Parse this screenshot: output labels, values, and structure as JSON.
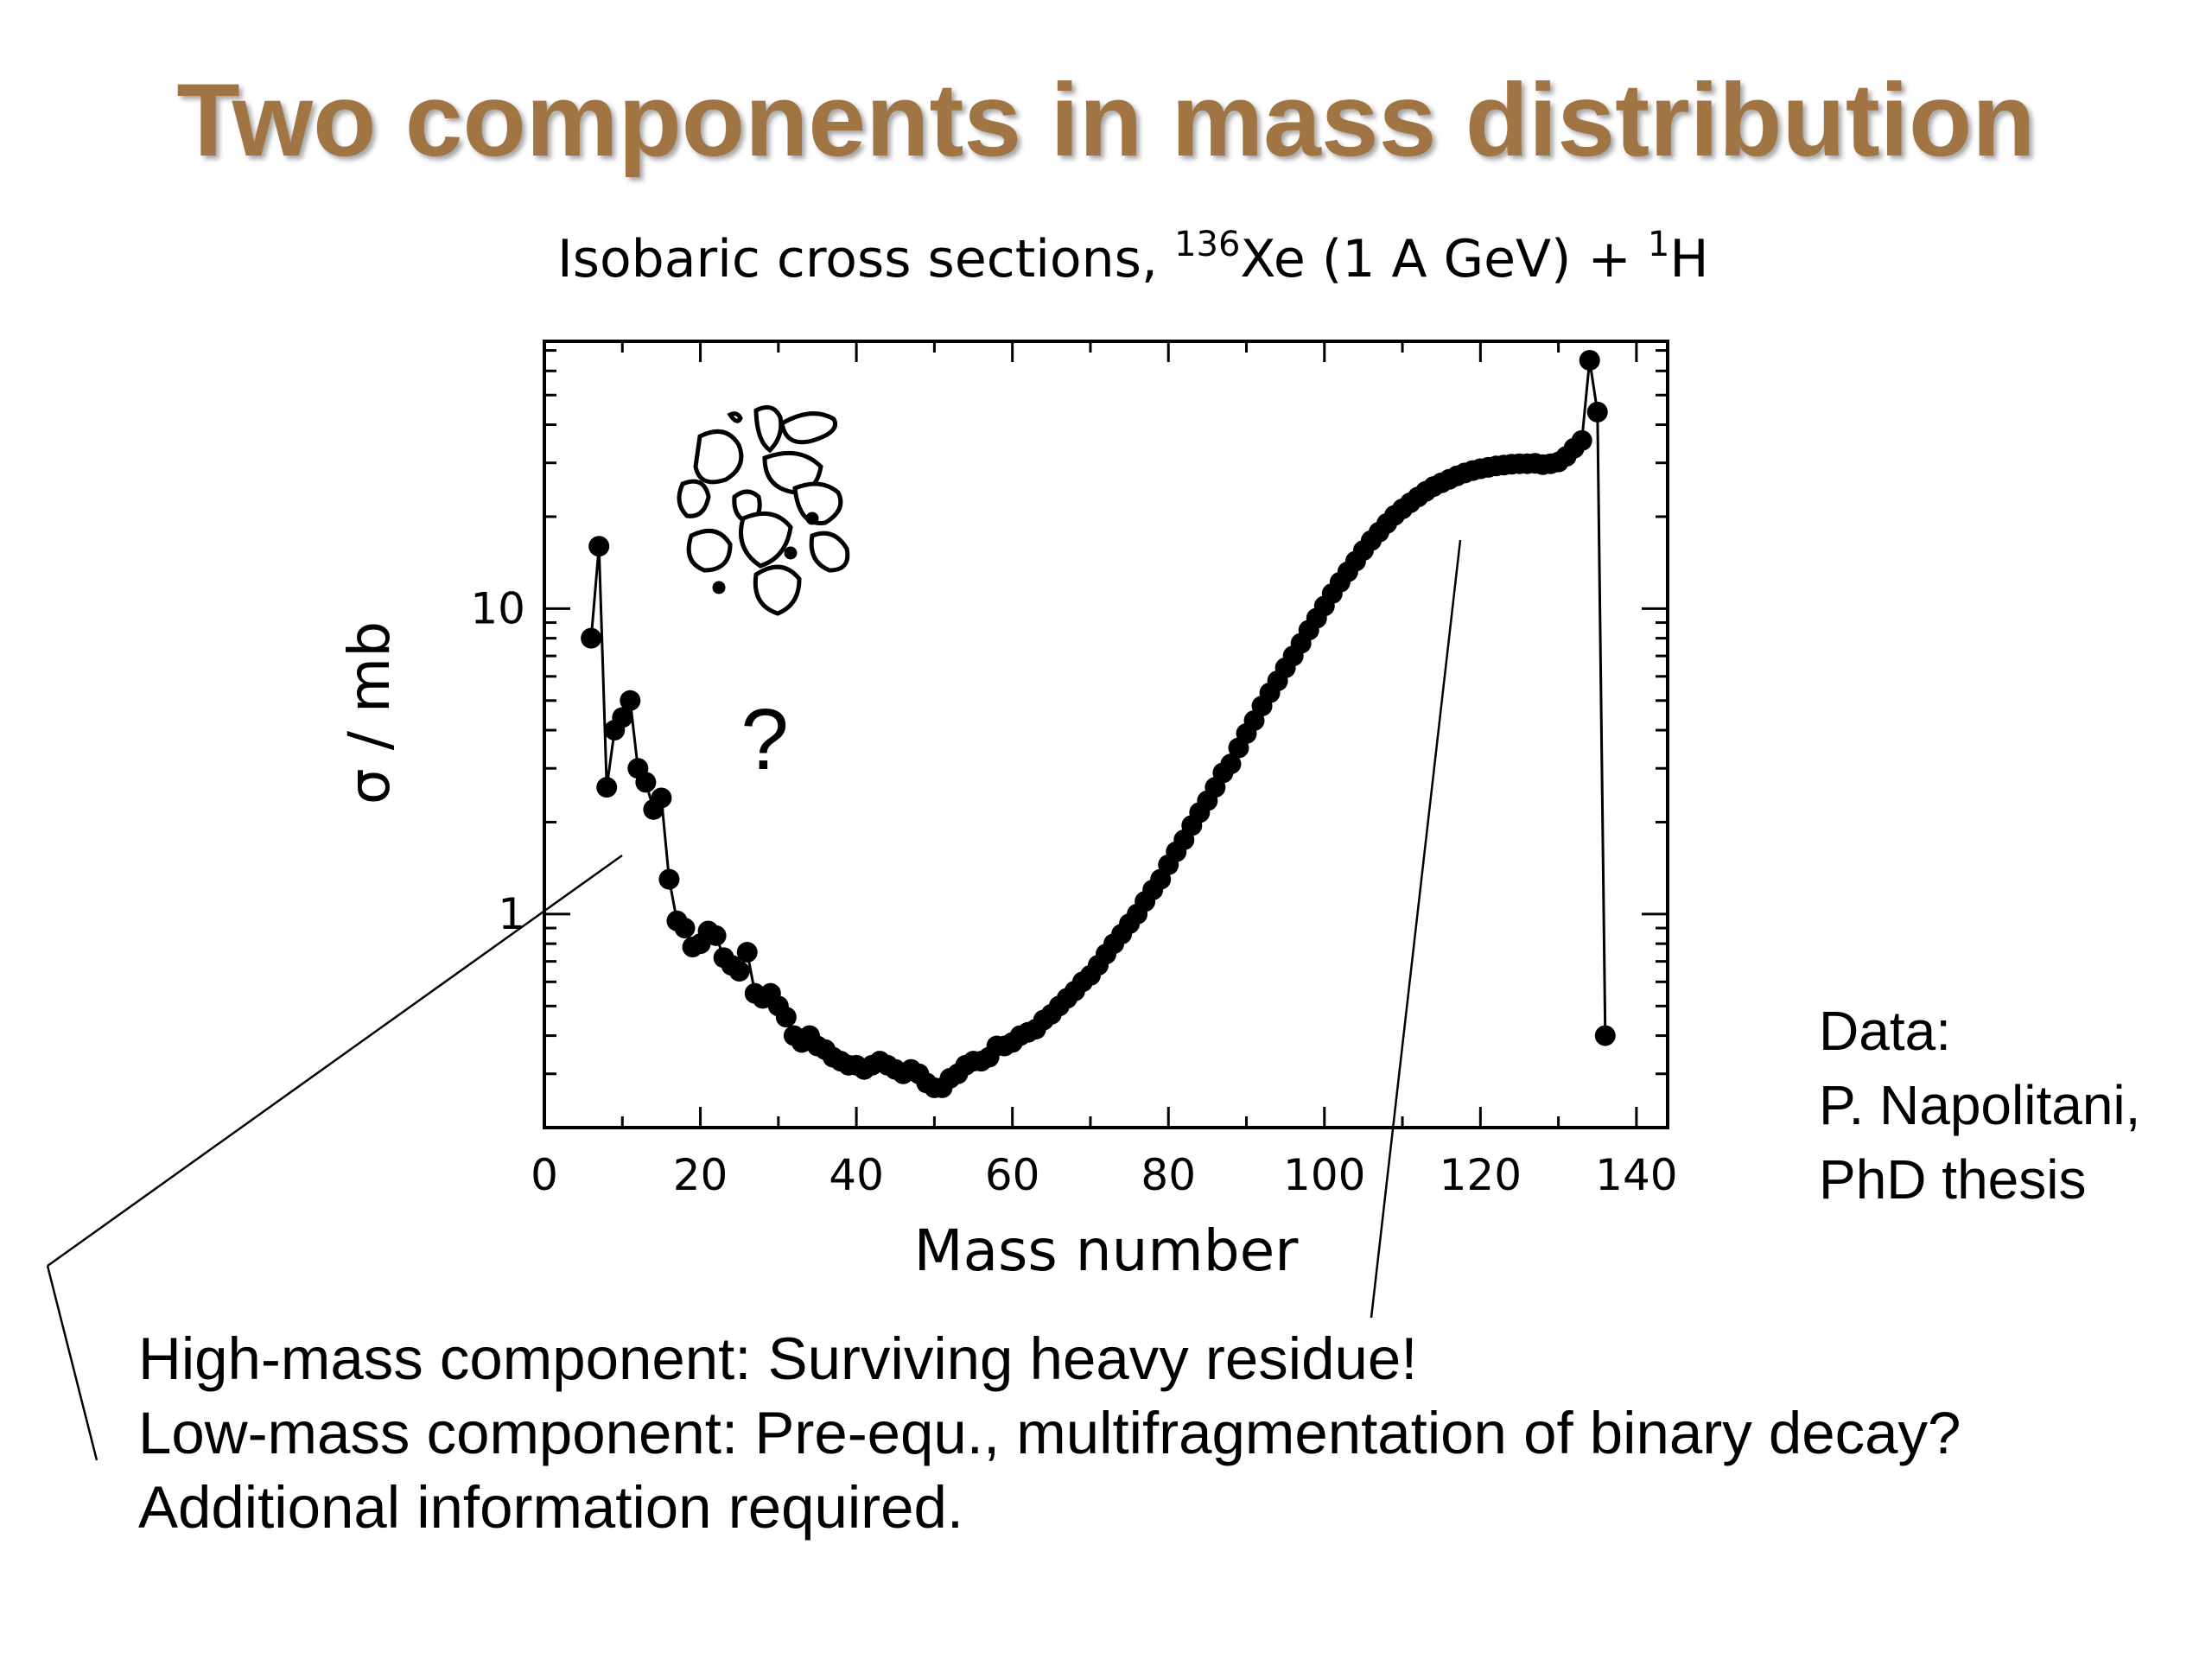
{
  "slide": {
    "title": "Two components in mass distribution",
    "data_note": [
      "Data:",
      "P. Napolitani,",
      "PhD thesis"
    ],
    "bottom_lines": [
      "High-mass component: Surviving heavy residue!",
      "Low-mass component: Pre-equ., multifragmentation of binary decay?",
      "Additional information required."
    ],
    "question_mark": "?",
    "fragments_icon": "multifragmentation-sketch-icon"
  },
  "chart_data": {
    "type": "scatter",
    "title_parts": {
      "pre": "Isobaric cross sections, ",
      "sup1": "136",
      "mid": "Xe (1 A GeV) + ",
      "sup2": "1",
      "post": "H"
    },
    "xlabel": "Mass number",
    "ylabel": "σ / mb",
    "xlim": [
      0,
      144
    ],
    "ylim": [
      0.2,
      75
    ],
    "yscale": "log",
    "x_ticks": [
      0,
      20,
      40,
      60,
      80,
      100,
      120,
      140
    ],
    "y_ticks": [
      {
        "value": 1,
        "label": "1"
      },
      {
        "value": 10,
        "label": "10"
      }
    ],
    "grid": false,
    "series": [
      {
        "points": [
          [
            6,
            8.0
          ],
          [
            7,
            16.0
          ],
          [
            8,
            2.6
          ],
          [
            9,
            4.0
          ],
          [
            10,
            4.4
          ],
          [
            11,
            5.0
          ],
          [
            12,
            3.0
          ],
          [
            13,
            2.7
          ],
          [
            14,
            2.2
          ],
          [
            15,
            2.4
          ],
          [
            16,
            1.3
          ],
          [
            17,
            0.95
          ],
          [
            18,
            0.9
          ],
          [
            19,
            0.78
          ],
          [
            20,
            0.8
          ],
          [
            21,
            0.88
          ],
          [
            22,
            0.85
          ],
          [
            23,
            0.72
          ],
          [
            24,
            0.68
          ],
          [
            25,
            0.65
          ],
          [
            26,
            0.75
          ],
          [
            27,
            0.55
          ],
          [
            28,
            0.53
          ],
          [
            29,
            0.55
          ],
          [
            30,
            0.5
          ],
          [
            31,
            0.46
          ],
          [
            32,
            0.4
          ],
          [
            33,
            0.38
          ],
          [
            34,
            0.4
          ],
          [
            35,
            0.37
          ],
          [
            36,
            0.36
          ],
          [
            37,
            0.34
          ],
          [
            38,
            0.33
          ],
          [
            39,
            0.32
          ],
          [
            40,
            0.32
          ],
          [
            41,
            0.31
          ],
          [
            42,
            0.32
          ],
          [
            43,
            0.33
          ],
          [
            44,
            0.32
          ],
          [
            45,
            0.31
          ],
          [
            46,
            0.3
          ],
          [
            47,
            0.31
          ],
          [
            48,
            0.3
          ],
          [
            49,
            0.28
          ],
          [
            50,
            0.27
          ],
          [
            51,
            0.27
          ],
          [
            52,
            0.29
          ],
          [
            53,
            0.3
          ],
          [
            54,
            0.32
          ],
          [
            55,
            0.33
          ],
          [
            56,
            0.33
          ],
          [
            57,
            0.34
          ],
          [
            58,
            0.37
          ],
          [
            59,
            0.37
          ],
          [
            60,
            0.38
          ],
          [
            61,
            0.4
          ],
          [
            62,
            0.41
          ],
          [
            63,
            0.42
          ],
          [
            64,
            0.45
          ],
          [
            65,
            0.47
          ],
          [
            66,
            0.5
          ],
          [
            67,
            0.53
          ],
          [
            68,
            0.56
          ],
          [
            69,
            0.6
          ],
          [
            70,
            0.63
          ],
          [
            71,
            0.68
          ],
          [
            72,
            0.74
          ],
          [
            73,
            0.8
          ],
          [
            74,
            0.86
          ],
          [
            75,
            0.93
          ],
          [
            76,
            1.0
          ],
          [
            77,
            1.1
          ],
          [
            78,
            1.2
          ],
          [
            79,
            1.3
          ],
          [
            80,
            1.45
          ],
          [
            81,
            1.6
          ],
          [
            82,
            1.75
          ],
          [
            83,
            1.95
          ],
          [
            84,
            2.15
          ],
          [
            85,
            2.35
          ],
          [
            86,
            2.6
          ],
          [
            87,
            2.9
          ],
          [
            88,
            3.1
          ],
          [
            89,
            3.5
          ],
          [
            90,
            3.9
          ],
          [
            91,
            4.3
          ],
          [
            92,
            4.8
          ],
          [
            93,
            5.3
          ],
          [
            94,
            5.8
          ],
          [
            95,
            6.4
          ],
          [
            96,
            7.0
          ],
          [
            97,
            7.7
          ],
          [
            98,
            8.5
          ],
          [
            99,
            9.3
          ],
          [
            100,
            10.2
          ],
          [
            101,
            11.2
          ],
          [
            102,
            12.2
          ],
          [
            103,
            13.2
          ],
          [
            104,
            14.3
          ],
          [
            105,
            15.5
          ],
          [
            106,
            16.7
          ],
          [
            107,
            17.8
          ],
          [
            108,
            19.0
          ],
          [
            109,
            20.2
          ],
          [
            110,
            21.2
          ],
          [
            111,
            22.2
          ],
          [
            112,
            23.2
          ],
          [
            113,
            24.2
          ],
          [
            114,
            25.1
          ],
          [
            115,
            25.8
          ],
          [
            116,
            26.5
          ],
          [
            117,
            27.2
          ],
          [
            118,
            27.8
          ],
          [
            119,
            28.3
          ],
          [
            120,
            28.7
          ],
          [
            121,
            29.0
          ],
          [
            122,
            29.3
          ],
          [
            123,
            29.5
          ],
          [
            124,
            29.7
          ],
          [
            125,
            29.8
          ],
          [
            126,
            29.8
          ],
          [
            127,
            29.9
          ],
          [
            128,
            29.6
          ],
          [
            129,
            29.8
          ],
          [
            130,
            30.2
          ],
          [
            131,
            31.5
          ],
          [
            132,
            33.5
          ],
          [
            133,
            35.5
          ],
          [
            134,
            65.0
          ],
          [
            135,
            44.0
          ],
          [
            136,
            0.4
          ]
        ]
      }
    ]
  }
}
